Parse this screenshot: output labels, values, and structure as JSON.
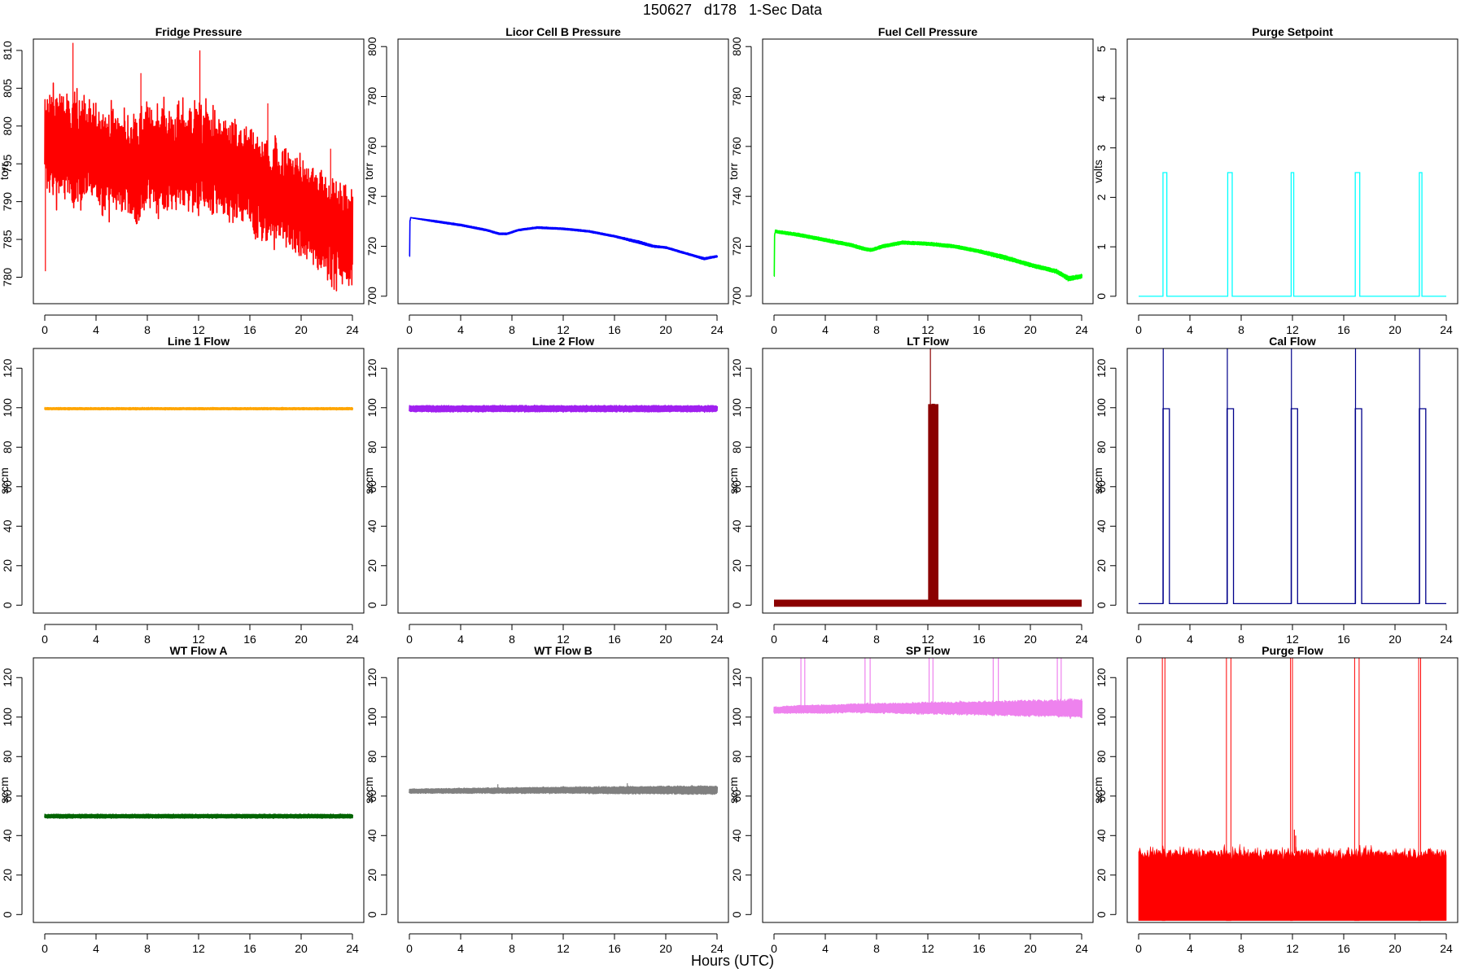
{
  "page": {
    "title": "150627   d178   1-Sec Data",
    "xlabel": "Hours (UTC)"
  },
  "chart_data": [
    {
      "id": "fridge",
      "type": "line",
      "title": "Fridge Pressure",
      "ylabel": "torr",
      "color": "#ff0000",
      "xlim": [
        0,
        24
      ],
      "ylim": [
        776.5,
        811.5
      ],
      "yticks": [
        780,
        785,
        790,
        795,
        800,
        805,
        810
      ],
      "xticks": [
        0,
        4,
        8,
        12,
        16,
        20,
        24
      ],
      "series": [
        {
          "x": [
            0,
            2,
            4,
            6,
            7.3,
            8,
            10,
            12,
            14,
            16,
            17.3,
            18,
            20,
            22,
            23,
            24
          ],
          "mean": [
            798,
            797,
            796,
            795,
            794,
            796,
            795.5,
            796,
            794,
            793,
            791,
            791.5,
            789,
            787,
            786,
            785.5
          ],
          "noise": [
            4.5,
            5,
            4.5,
            4.5,
            4.5,
            4.5,
            4.5,
            5,
            4.5,
            4.5,
            4.5,
            4.5,
            4.5,
            4.5,
            4.5,
            4.5
          ]
        }
      ],
      "spikes": [
        {
          "x": 2.2,
          "y": 811
        },
        {
          "x": 12.1,
          "y": 810
        },
        {
          "x": 7.5,
          "y": 807
        },
        {
          "x": 17.4,
          "y": 803
        },
        {
          "x": 22.3,
          "y": 797
        },
        {
          "x": 0.05,
          "y": 780.8
        }
      ]
    },
    {
      "id": "licor",
      "type": "line",
      "title": "Licor Cell B Pressure",
      "ylabel": "torr",
      "color": "#0000ff",
      "xlim": [
        0,
        24
      ],
      "ylim": [
        697,
        803
      ],
      "yticks": [
        700,
        720,
        740,
        760,
        780,
        800
      ],
      "xticks": [
        0,
        4,
        8,
        12,
        16,
        20,
        24
      ],
      "series": [
        {
          "x": [
            0,
            0.05,
            2,
            4,
            6,
            7,
            7.6,
            8.5,
            10,
            12,
            14,
            16,
            18,
            19,
            20,
            22,
            23,
            24
          ],
          "y": [
            716,
            731.5,
            730,
            728.5,
            726.5,
            725,
            725,
            726.5,
            727.5,
            727,
            726,
            724,
            721.5,
            720,
            719.5,
            716.5,
            715,
            716
          ],
          "noise": [
            0,
            0,
            0.3,
            0.3,
            0.3,
            0.3,
            0.3,
            0.3,
            0.3,
            0.3,
            0.3,
            0.3,
            0.5,
            0.4,
            0.3,
            0.3,
            0.4,
            0.3
          ]
        }
      ]
    },
    {
      "id": "fuelcell",
      "type": "line",
      "title": "Fuel Cell Pressure",
      "ylabel": "torr",
      "color": "#00ff00",
      "xlim": [
        0,
        24
      ],
      "ylim": [
        697,
        803
      ],
      "yticks": [
        700,
        720,
        740,
        760,
        780,
        800
      ],
      "xticks": [
        0,
        4,
        8,
        12,
        16,
        20,
        24
      ],
      "series": [
        {
          "x": [
            0,
            0.05,
            2,
            4,
            6,
            7,
            7.6,
            8.5,
            10,
            12,
            14,
            16,
            18,
            19,
            20,
            22,
            23,
            24
          ],
          "y": [
            708,
            726,
            724.5,
            722.5,
            720.5,
            719,
            718.5,
            720,
            721.5,
            721,
            720,
            718,
            715.5,
            714,
            712.5,
            710,
            707,
            708
          ],
          "noise": [
            0,
            0.5,
            0.6,
            0.6,
            0.6,
            0.6,
            0.6,
            0.6,
            0.6,
            0.6,
            0.6,
            0.6,
            0.8,
            0.7,
            0.7,
            0.7,
            0.9,
            0.7
          ]
        }
      ]
    },
    {
      "id": "purgeset",
      "type": "line",
      "title": "Purge Setpoint",
      "ylabel": "volts",
      "color": "#00ffff",
      "xlim": [
        0,
        24
      ],
      "ylim": [
        -0.15,
        5.2
      ],
      "yticks": [
        0,
        1,
        2,
        3,
        4,
        5
      ],
      "xticks": [
        0,
        4,
        8,
        12,
        16,
        20,
        24
      ],
      "series": [
        {
          "baseline": 0,
          "pulses": [
            {
              "start": 1.9,
              "end": 2.2,
              "y": 2.5
            },
            {
              "start": 6.95,
              "end": 7.3,
              "y": 2.5
            },
            {
              "start": 11.9,
              "end": 12.1,
              "y": 2.5
            },
            {
              "start": 16.9,
              "end": 17.25,
              "y": 2.5
            },
            {
              "start": 21.9,
              "end": 22.1,
              "y": 2.5
            }
          ]
        }
      ]
    },
    {
      "id": "line1",
      "type": "line",
      "title": "Line 1 Flow",
      "ylabel": "sccm",
      "color": "#ffa500",
      "xlim": [
        0,
        24
      ],
      "ylim": [
        -4,
        130
      ],
      "yticks": [
        0,
        20,
        40,
        60,
        80,
        100,
        120
      ],
      "xticks": [
        0,
        4,
        8,
        12,
        16,
        20,
        24
      ],
      "series": [
        {
          "x": [
            0,
            24
          ],
          "y": [
            99.5,
            99.5
          ],
          "noise": [
            0.5,
            0.5
          ]
        }
      ]
    },
    {
      "id": "line2",
      "type": "line",
      "title": "Line 2 Flow",
      "ylabel": "sccm",
      "color": "#a020f0",
      "xlim": [
        0,
        24
      ],
      "ylim": [
        -4,
        130
      ],
      "yticks": [
        0,
        20,
        40,
        60,
        80,
        100,
        120
      ],
      "xticks": [
        0,
        4,
        8,
        12,
        16,
        20,
        24
      ],
      "series": [
        {
          "x": [
            0,
            24
          ],
          "y": [
            99.5,
            99.5
          ],
          "noise": [
            1.5,
            1.5
          ]
        }
      ]
    },
    {
      "id": "ltflow",
      "type": "line",
      "title": "LT Flow",
      "ylabel": "sccm",
      "color": "#8b0000",
      "xlim": [
        0,
        24
      ],
      "ylim": [
        -4,
        130
      ],
      "yticks": [
        0,
        20,
        40,
        60,
        80,
        100,
        120
      ],
      "xticks": [
        0,
        4,
        8,
        12,
        16,
        20,
        24
      ],
      "series": [
        {
          "baseline": 1,
          "noise": 1.8,
          "pulses": [
            {
              "start": 12.3,
              "end": 12.55,
              "y": 100,
              "noise": 2
            }
          ]
        }
      ],
      "spikes": [
        {
          "x": 12.2,
          "y": 130
        }
      ]
    },
    {
      "id": "calflow",
      "type": "line",
      "title": "Cal Flow",
      "ylabel": "sccm",
      "color": "#00008b",
      "xlim": [
        0,
        24
      ],
      "ylim": [
        -4,
        130
      ],
      "yticks": [
        0,
        20,
        40,
        60,
        80,
        100,
        120
      ],
      "xticks": [
        0,
        4,
        8,
        12,
        16,
        20,
        24
      ],
      "series": [
        {
          "baseline": 0.8,
          "pulses": [
            {
              "start": 1.9,
              "end": 2.4,
              "y": 99.5
            },
            {
              "start": 6.9,
              "end": 7.4,
              "y": 99.5
            },
            {
              "start": 11.9,
              "end": 12.4,
              "y": 99.5
            },
            {
              "start": 16.9,
              "end": 17.4,
              "y": 99.5
            },
            {
              "start": 21.9,
              "end": 22.4,
              "y": 99.5
            }
          ]
        }
      ],
      "spikes": [
        {
          "x": 1.92,
          "y": 130
        },
        {
          "x": 6.92,
          "y": 130
        },
        {
          "x": 11.92,
          "y": 130
        },
        {
          "x": 16.92,
          "y": 130
        },
        {
          "x": 21.92,
          "y": 130
        }
      ]
    },
    {
      "id": "wta",
      "type": "line",
      "title": "WT Flow A",
      "ylabel": "sccm",
      "color": "#006400",
      "xlim": [
        0,
        24
      ],
      "ylim": [
        -4,
        130
      ],
      "yticks": [
        0,
        20,
        40,
        60,
        80,
        100,
        120
      ],
      "xticks": [
        0,
        4,
        8,
        12,
        16,
        20,
        24
      ],
      "series": [
        {
          "x": [
            0,
            24
          ],
          "y": [
            49.8,
            49.8
          ],
          "noise": [
            0.9,
            0.9
          ]
        }
      ]
    },
    {
      "id": "wtb",
      "type": "line",
      "title": "WT Flow B",
      "ylabel": "sccm",
      "color": "#808080",
      "xlim": [
        0,
        24
      ],
      "ylim": [
        -4,
        130
      ],
      "yticks": [
        0,
        20,
        40,
        60,
        80,
        100,
        120
      ],
      "xticks": [
        0,
        4,
        8,
        12,
        16,
        20,
        24
      ],
      "series": [
        {
          "x": [
            0,
            12,
            24
          ],
          "y": [
            62.5,
            63,
            63
          ],
          "noise": [
            1,
            1.5,
            2
          ]
        }
      ],
      "spikes": [
        {
          "x": 6.9,
          "y": 66
        },
        {
          "x": 17,
          "y": 66.5
        },
        {
          "x": 12,
          "y": 65
        }
      ]
    },
    {
      "id": "spflow",
      "type": "line",
      "title": "SP Flow",
      "ylabel": "sccm",
      "color": "#ee82ee",
      "xlim": [
        0,
        24
      ],
      "ylim": [
        -4,
        130
      ],
      "yticks": [
        0,
        20,
        40,
        60,
        80,
        100,
        120
      ],
      "xticks": [
        0,
        4,
        8,
        12,
        16,
        20,
        24
      ],
      "series": [
        {
          "x": [
            0,
            2,
            4,
            6,
            8,
            10,
            12,
            14,
            16,
            18,
            20,
            22,
            24
          ],
          "y": [
            103.5,
            104,
            104,
            104.5,
            104.5,
            104.5,
            104.5,
            104.5,
            104.5,
            104.5,
            104.5,
            104.5,
            104.5
          ],
          "noise": [
            1.5,
            1.8,
            2,
            2,
            2.3,
            2.5,
            2.8,
            3,
            3.2,
            3.5,
            3.8,
            4,
            4.3
          ]
        }
      ],
      "spikes": [
        {
          "x": 2.1,
          "y": 130
        },
        {
          "x": 2.4,
          "y": 130
        },
        {
          "x": 7.1,
          "y": 130
        },
        {
          "x": 7.5,
          "y": 130
        },
        {
          "x": 12.1,
          "y": 130
        },
        {
          "x": 12.4,
          "y": 130
        },
        {
          "x": 17.1,
          "y": 130
        },
        {
          "x": 17.5,
          "y": 130
        },
        {
          "x": 22.1,
          "y": 130
        },
        {
          "x": 22.4,
          "y": 130
        }
      ]
    },
    {
      "id": "purgeflow",
      "type": "line",
      "title": "Purge Flow",
      "ylabel": "sccm",
      "color": "#ff0000",
      "xlim": [
        0,
        24
      ],
      "ylim": [
        -4,
        130
      ],
      "yticks": [
        0,
        20,
        40,
        60,
        80,
        100,
        120
      ],
      "xticks": [
        0,
        4,
        8,
        12,
        16,
        20,
        24
      ],
      "series": [
        {
          "fill_from": -3,
          "baseline_top": 31,
          "noise": 3,
          "pulses": [
            {
              "start": 1.85,
              "end": 2.05,
              "y": 130
            },
            {
              "start": 6.85,
              "end": 7.2,
              "y": 130
            },
            {
              "start": 11.85,
              "end": 12.0,
              "y": 130
            },
            {
              "start": 16.85,
              "end": 17.2,
              "y": 130
            },
            {
              "start": 21.85,
              "end": 22.0,
              "y": 130
            }
          ]
        }
      ],
      "spikes": [
        {
          "x": 12.15,
          "y": 43
        },
        {
          "x": 12.25,
          "y": 40
        }
      ]
    }
  ]
}
